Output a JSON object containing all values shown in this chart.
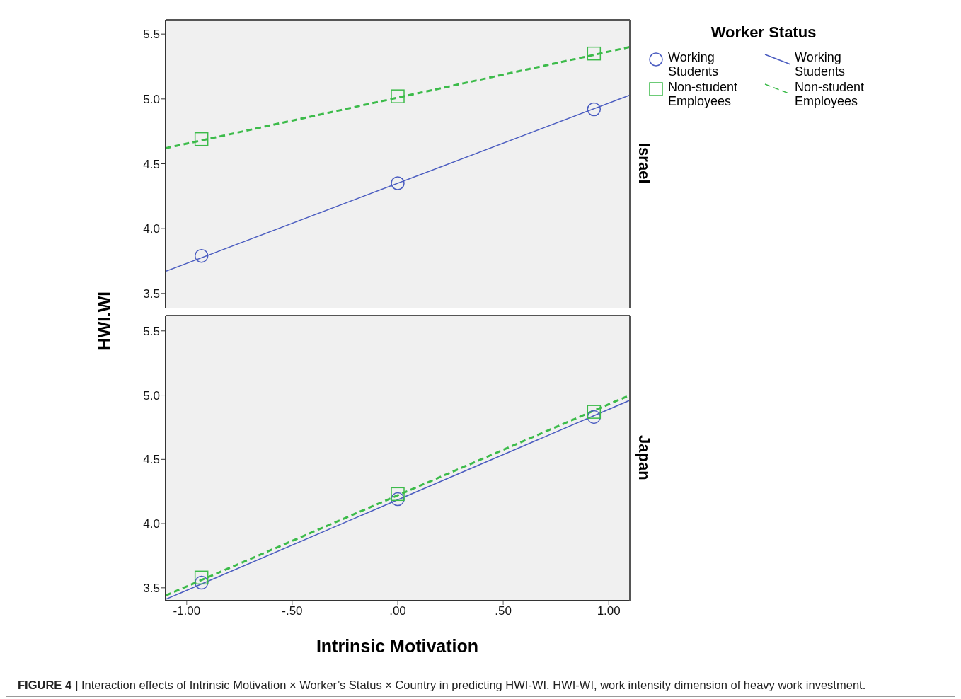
{
  "chart_data": [
    {
      "type": "scatter",
      "ylabel": "HWI.WI",
      "legend_title": "Worker Status",
      "legend": "right",
      "tick_labels": "y",
      "annotations": [
        "Israel"
      ],
      "xlim": [
        -1.1,
        1.1
      ],
      "ylim": [
        3.39,
        5.61
      ],
      "yticks": [
        {
          "value": 3.5,
          "label": "3.5"
        },
        {
          "value": 4,
          "label": "4.0"
        },
        {
          "value": 4.5,
          "label": "4.5"
        },
        {
          "value": 5,
          "label": "5.0"
        },
        {
          "value": 5.5,
          "label": "5.5"
        }
      ],
      "series": [
        {
          "name": "Working Students",
          "type": "scatter",
          "marker": "circle",
          "color": "#4a5cc0",
          "x": [
            -0.93,
            0,
            0.93
          ],
          "values": [
            3.79,
            4.35,
            4.92
          ]
        },
        {
          "name": "Non-student Employees",
          "type": "scatter",
          "marker": "square",
          "color": "#3cbb4a",
          "x": [
            -0.93,
            0,
            0.93
          ],
          "values": [
            4.69,
            5.02,
            5.35
          ]
        },
        {
          "name": "Working Students",
          "type": "line",
          "line_style": "solid",
          "color": "#4a5cc0",
          "x": [
            -1.1,
            1.1
          ],
          "values": [
            3.67,
            5.03
          ]
        },
        {
          "name": "Non-student Employees",
          "type": "line",
          "line_style": "dashed",
          "color": "#3cbb4a",
          "x": [
            -1.1,
            1.1
          ],
          "values": [
            4.62,
            5.4
          ]
        }
      ]
    },
    {
      "type": "scatter",
      "xlabel": "Intrinsic Motivation",
      "annotations": [
        "Japan",
        "FIGURE 4 | Interaction effects of Intrinsic Motivation × Worker’s Status × Country in predicting HWI-WI. HWI-WI, work intensity dimension of heavy work investment."
      ],
      "xlim": [
        -1.1,
        1.1
      ],
      "ylim": [
        3.4,
        5.62
      ],
      "xticks": [
        {
          "value": -1,
          "label": "-1.00"
        },
        {
          "value": -0.5,
          "label": "-.50"
        },
        {
          "value": 0,
          "label": ".00"
        },
        {
          "value": 0.5,
          "label": ".50"
        },
        {
          "value": 1,
          "label": "1.00"
        }
      ],
      "yticks": [
        {
          "value": 3.5,
          "label": "3.5"
        },
        {
          "value": 4,
          "label": "4.0"
        },
        {
          "value": 4.5,
          "label": "4.5"
        },
        {
          "value": 5,
          "label": "5.0"
        },
        {
          "value": 5.5,
          "label": "5.5"
        }
      ],
      "series": [
        {
          "type": "scatter",
          "marker": "circle",
          "color": "#4a5cc0",
          "x": [
            -0.93,
            0,
            0.93
          ],
          "values": [
            3.54,
            4.19,
            4.83
          ]
        },
        {
          "type": "scatter",
          "marker": "square",
          "color": "#3cbb4a",
          "x": [
            -0.93,
            0,
            0.93
          ],
          "values": [
            3.58,
            4.23,
            4.87
          ]
        },
        {
          "type": "line",
          "line_style": "solid",
          "color": "#4a5cc0",
          "x": [
            -1.1,
            1.1
          ],
          "values": [
            3.41,
            4.96
          ]
        },
        {
          "type": "line",
          "line_style": "dashed",
          "color": "#3cbb4a",
          "x": [
            -1.1,
            1.1
          ],
          "values": [
            3.44,
            5.0
          ]
        }
      ]
    }
  ]
}
